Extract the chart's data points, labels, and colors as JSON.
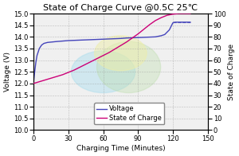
{
  "title": "State of Charge Curve @0.5C 25℃",
  "xlabel": "Charging Time (Minutes)",
  "ylabel_left": "Voltage (V)",
  "ylabel_right": "State of Charge",
  "xlim": [
    0,
    150
  ],
  "ylim_left": [
    10.0,
    15.0
  ],
  "ylim_right": [
    0,
    100
  ],
  "yticks_left": [
    10.0,
    10.5,
    11.0,
    11.5,
    12.0,
    12.5,
    13.0,
    13.5,
    14.0,
    14.5,
    15.0
  ],
  "yticks_right": [
    0,
    10,
    20,
    30,
    40,
    50,
    60,
    70,
    80,
    90,
    100
  ],
  "xticks": [
    0,
    30,
    60,
    90,
    120,
    150
  ],
  "voltage_color": "#4444bb",
  "soc_color": "#cc0077",
  "plot_bg_color": "#f0f0f0",
  "grid_color": "#999999",
  "voltage_x": [
    0,
    1,
    2,
    3,
    5,
    7,
    9,
    12,
    16,
    20,
    25,
    30,
    40,
    50,
    60,
    70,
    75,
    80,
    85,
    90,
    95,
    100,
    105,
    110,
    113,
    115,
    117,
    119,
    120,
    121,
    122,
    123,
    124,
    125,
    128,
    130,
    132,
    135
  ],
  "voltage_y": [
    12.05,
    12.5,
    12.9,
    13.2,
    13.5,
    13.65,
    13.72,
    13.76,
    13.78,
    13.8,
    13.82,
    13.84,
    13.86,
    13.88,
    13.9,
    13.92,
    13.93,
    13.95,
    13.96,
    13.97,
    13.98,
    13.99,
    14.0,
    14.05,
    14.1,
    14.2,
    14.3,
    14.5,
    14.6,
    14.62,
    14.63,
    14.63,
    14.63,
    14.63,
    14.63,
    14.63,
    14.63,
    14.63
  ],
  "soc_x": [
    0,
    5,
    10,
    15,
    20,
    25,
    30,
    35,
    40,
    45,
    50,
    55,
    60,
    65,
    70,
    75,
    80,
    85,
    90,
    95,
    100,
    105,
    110,
    115,
    120,
    125,
    130,
    135
  ],
  "soc_y": [
    40,
    41.5,
    43,
    44.5,
    46,
    47.5,
    49.5,
    51.5,
    54,
    56.5,
    59,
    61.5,
    64,
    66.5,
    69.5,
    72.5,
    75.5,
    79,
    82.5,
    86.5,
    90.5,
    94,
    96.5,
    98.5,
    99.5,
    100,
    100,
    100
  ],
  "legend_voltage": "Voltage",
  "legend_soc": "State of Charge",
  "title_fontsize": 8,
  "label_fontsize": 6.5,
  "tick_fontsize": 6,
  "legend_fontsize": 6
}
